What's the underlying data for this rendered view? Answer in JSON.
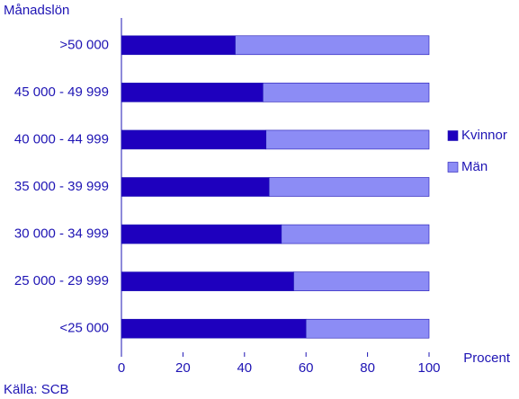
{
  "chart_data": {
    "type": "stacked-barh",
    "y_label": "Månadslön",
    "x_label": "Procent",
    "source": "Källa: SCB",
    "categories": [
      ">50 000",
      "45 000 - 49 999",
      "40 000 - 44 999",
      "35 000 - 39 999",
      "30 000 - 34 999",
      "25 000 - 29 999",
      "<25 000"
    ],
    "series": [
      {
        "name": "Kvinnor",
        "color": "#1e00be",
        "values": [
          37,
          46,
          47,
          48,
          52,
          56,
          60
        ]
      },
      {
        "name": "Män",
        "color": "#8c8cf5",
        "values": [
          63,
          54,
          53,
          52,
          48,
          44,
          40
        ]
      }
    ],
    "xlim": [
      0,
      100
    ],
    "xticks": [
      0,
      20,
      40,
      60,
      80,
      100
    ],
    "legend": "right"
  }
}
